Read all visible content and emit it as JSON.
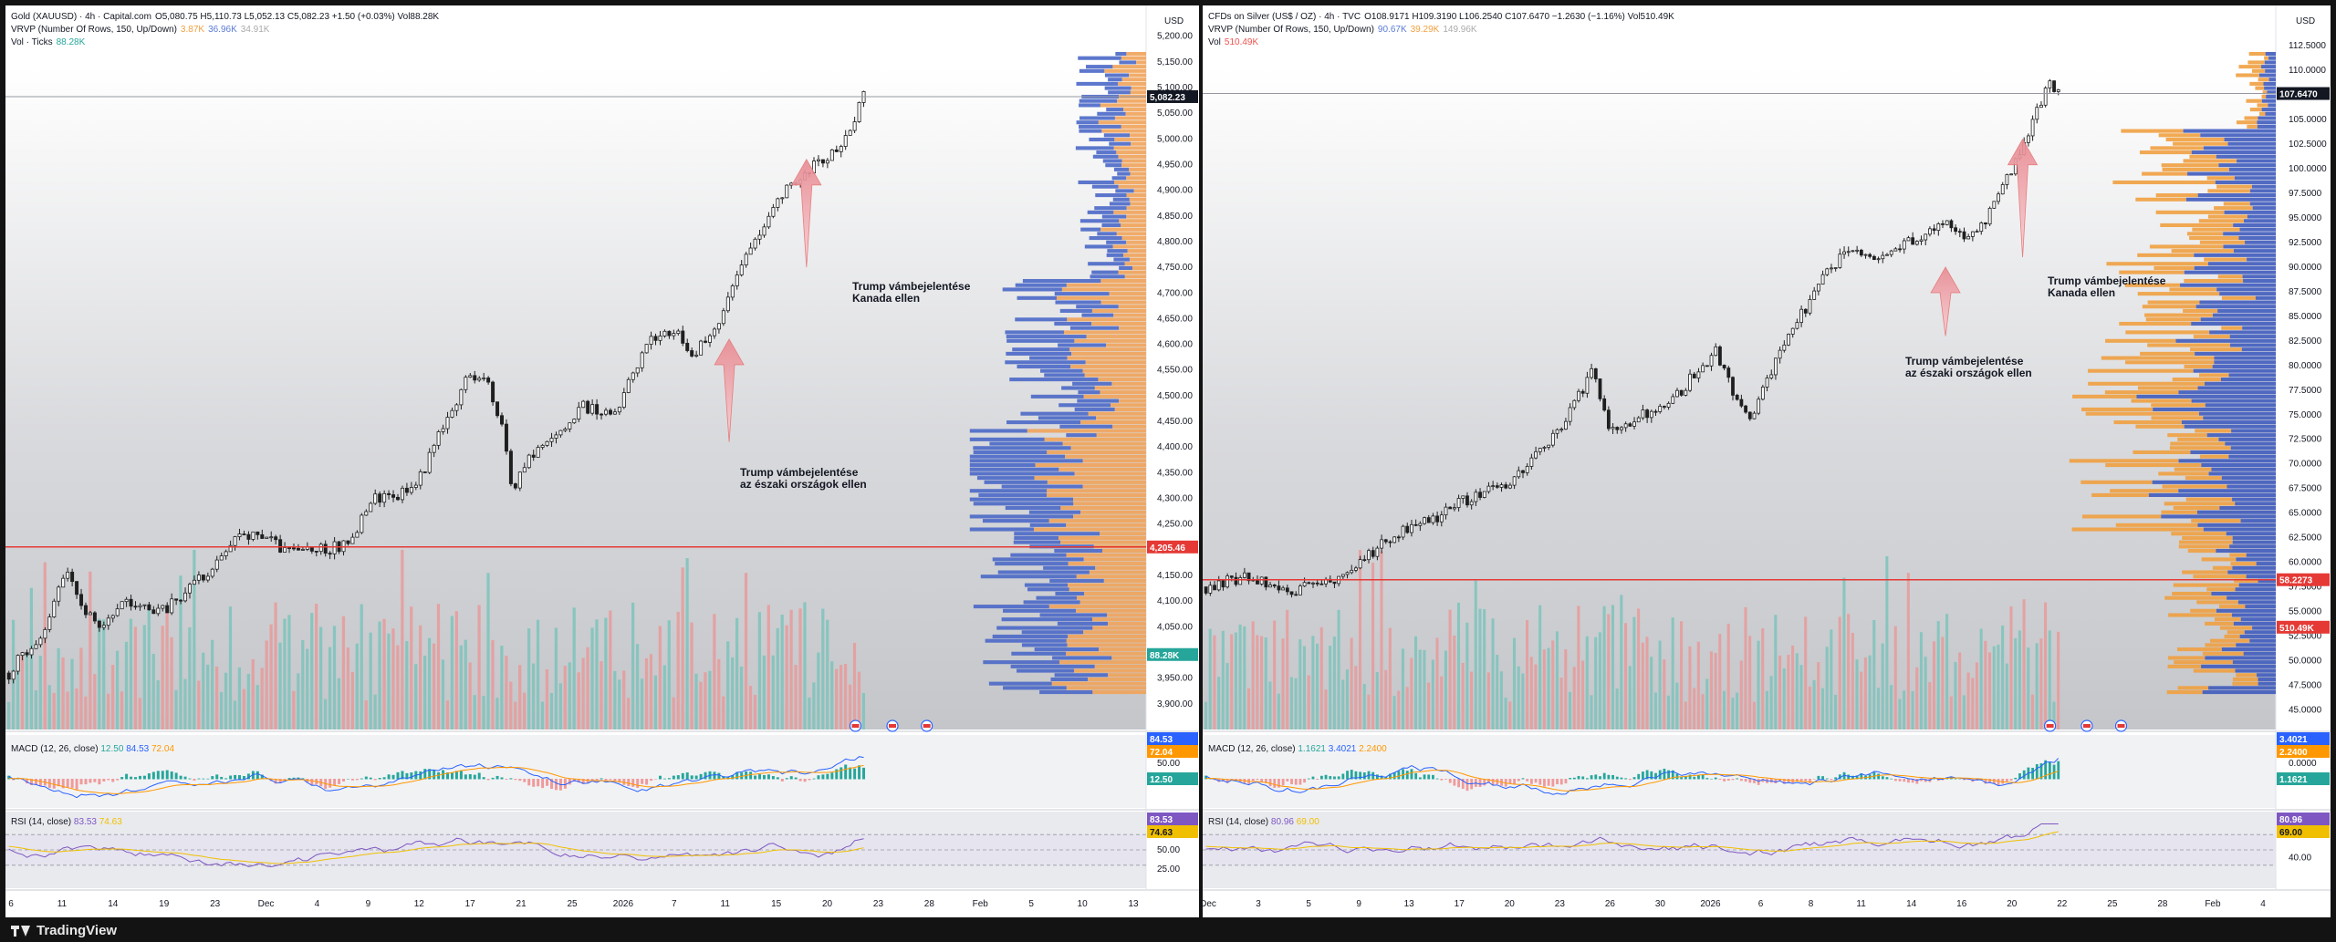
{
  "footer": {
    "brand": "TradingView"
  },
  "charts": [
    {
      "id": "gold",
      "legend": {
        "symbol": "Gold (XAUUSD) · 4h · Capital.com",
        "ohlc": "O5,080.75  H5,110.73  L5,052.13  C5,082.23  +1.50 (+0.03%)  Vol88.28K",
        "vrvp": "VRVP (Number Of Rows, 150, Up/Down)",
        "vrvp_vals": [
          "3.87K",
          "36.96K",
          "34.91K"
        ],
        "vol": "Vol · Ticks",
        "vol_val": "88.28K"
      },
      "currency": "USD",
      "annotations": [
        {
          "line1": "Trump vámbejelentése",
          "line2": "Kanada ellen"
        },
        {
          "line1": "Trump vámbejelentése",
          "line2": "az északi országok ellen"
        }
      ],
      "macd": {
        "label": "MACD (12, 26, close)",
        "vals": [
          "12.50",
          "84.53",
          "72.04"
        ],
        "badges": [
          "84.53",
          "72.04",
          "12.50"
        ],
        "tick": "50.00"
      },
      "rsi": {
        "label": "RSI (14, close)",
        "vals": [
          "83.53",
          "74.63"
        ],
        "badges": [
          "83.53",
          "74.63"
        ],
        "ticks": [
          "50.00",
          "25.00"
        ]
      },
      "badges": {
        "last": "5,082.23",
        "level": "4,205.46",
        "vol": "88.28K"
      },
      "chart_data": {
        "type": "candlestick",
        "y_ticks": [
          "5,200.00",
          "5,150.00",
          "5,100.00",
          "5,050.00",
          "5,000.00",
          "4,950.00",
          "4,900.00",
          "4,850.00",
          "4,800.00",
          "4,750.00",
          "4,700.00",
          "4,650.00",
          "4,600.00",
          "4,550.00",
          "4,500.00",
          "4,450.00",
          "4,400.00",
          "4,350.00",
          "4,300.00",
          "4,250.00",
          "4,200.00",
          "4,150.00",
          "4,100.00",
          "4,050.00",
          "4,000.00",
          "3,950.00",
          "3,900.00"
        ],
        "ylim": [
          3850,
          5210
        ],
        "x_ticks": [
          "6",
          "11",
          "14",
          "19",
          "23",
          "Dec",
          "4",
          "9",
          "12",
          "17",
          "21",
          "25",
          "2026",
          "7",
          "11",
          "15",
          "20",
          "23",
          "28",
          "Feb",
          "5",
          "10",
          "13"
        ],
        "price_path": [
          [
            0,
            3960
          ],
          [
            0.04,
            4050
          ],
          [
            0.06,
            4160
          ],
          [
            0.08,
            4090
          ],
          [
            0.1,
            4040
          ],
          [
            0.13,
            4100
          ],
          [
            0.16,
            4070
          ],
          [
            0.19,
            4110
          ],
          [
            0.22,
            4160
          ],
          [
            0.25,
            4230
          ],
          [
            0.28,
            4220
          ],
          [
            0.31,
            4190
          ],
          [
            0.34,
            4200
          ],
          [
            0.37,
            4210
          ],
          [
            0.4,
            4300
          ],
          [
            0.43,
            4310
          ],
          [
            0.45,
            4340
          ],
          [
            0.47,
            4420
          ],
          [
            0.5,
            4530
          ],
          [
            0.52,
            4540
          ],
          [
            0.54,
            4440
          ],
          [
            0.55,
            4320
          ],
          [
            0.57,
            4380
          ],
          [
            0.6,
            4430
          ],
          [
            0.63,
            4480
          ],
          [
            0.66,
            4460
          ],
          [
            0.7,
            4610
          ],
          [
            0.73,
            4630
          ],
          [
            0.75,
            4580
          ],
          [
            0.78,
            4650
          ],
          [
            0.8,
            4760
          ],
          [
            0.83,
            4850
          ],
          [
            0.86,
            4920
          ],
          [
            0.89,
            4960
          ],
          [
            0.91,
            4980
          ],
          [
            0.935,
            5082
          ]
        ],
        "annotation_points": [
          {
            "x": 0.93,
            "y_from": 4750,
            "y_to": 4960
          },
          {
            "x": 0.84,
            "y_from": 4410,
            "y_to": 4610
          }
        ],
        "levels": {
          "last": 5082.23,
          "support": 4205.46
        },
        "volume_profile": "dense around 4,200 – 4,450, thinner above 4,700"
      }
    },
    {
      "id": "silver",
      "legend": {
        "symbol": "CFDs on Silver (US$ / OZ) · 4h · TVC",
        "ohlc": "O108.9171  H109.3190  L106.2540  C107.6470  −1.2630 (−1.16%)  Vol510.49K",
        "vrvp": "VRVP (Number Of Rows, 150, Up/Down)",
        "vrvp_vals": [
          "90.67K",
          "39.29K",
          "149.96K"
        ],
        "vol": "Vol",
        "vol_val": "510.49K"
      },
      "currency": "USD",
      "annotations": [
        {
          "line1": "Trump vámbejelentése",
          "line2": "Kanada ellen"
        },
        {
          "line1": "Trump vámbejelentése",
          "line2": "az északi országok ellen"
        }
      ],
      "macd": {
        "label": "MACD (12, 26, close)",
        "vals": [
          "1.1621",
          "3.4021",
          "2.2400"
        ],
        "badges": [
          "3.4021",
          "2.2400",
          "1.1621"
        ],
        "tick": "0.0000"
      },
      "rsi": {
        "label": "RSI (14, close)",
        "vals": [
          "80.96",
          "69.00"
        ],
        "badges": [
          "80.96",
          "69.00"
        ],
        "ticks": [
          "40.00"
        ]
      },
      "badges": {
        "last": "107.6470",
        "level": "58.2273",
        "vol": "510.49K"
      },
      "chart_data": {
        "type": "candlestick",
        "y_ticks": [
          "112.5000",
          "110.0000",
          "107.5000",
          "105.0000",
          "102.5000",
          "100.0000",
          "97.5000",
          "95.0000",
          "92.5000",
          "90.0000",
          "87.5000",
          "85.0000",
          "82.5000",
          "80.0000",
          "77.5000",
          "75.0000",
          "72.5000",
          "70.0000",
          "67.5000",
          "65.0000",
          "62.5000",
          "60.0000",
          "57.5000",
          "55.0000",
          "52.5000",
          "50.0000",
          "47.5000",
          "45.0000"
        ],
        "ylim": [
          43,
          114
        ],
        "x_ticks": [
          "Dec",
          "3",
          "5",
          "9",
          "13",
          "17",
          "20",
          "23",
          "26",
          "30",
          "2026",
          "6",
          "8",
          "11",
          "14",
          "16",
          "20",
          "22",
          "25",
          "28",
          "Feb",
          "4"
        ],
        "price_path": [
          [
            0,
            57.5
          ],
          [
            0.05,
            58.5
          ],
          [
            0.1,
            57.2
          ],
          [
            0.15,
            58.0
          ],
          [
            0.18,
            60.5
          ],
          [
            0.22,
            63.0
          ],
          [
            0.26,
            64.5
          ],
          [
            0.3,
            66.5
          ],
          [
            0.34,
            68.0
          ],
          [
            0.38,
            71.0
          ],
          [
            0.42,
            76.0
          ],
          [
            0.44,
            80.0
          ],
          [
            0.46,
            73.0
          ],
          [
            0.5,
            75.0
          ],
          [
            0.54,
            77.5
          ],
          [
            0.58,
            81.5
          ],
          [
            0.6,
            77.0
          ],
          [
            0.62,
            75.0
          ],
          [
            0.64,
            79.0
          ],
          [
            0.67,
            84.0
          ],
          [
            0.7,
            88.5
          ],
          [
            0.73,
            92.0
          ],
          [
            0.76,
            90.5
          ],
          [
            0.8,
            92.5
          ],
          [
            0.84,
            94.5
          ],
          [
            0.87,
            93.0
          ],
          [
            0.9,
            96.5
          ],
          [
            0.93,
            102.5
          ],
          [
            0.96,
            108.5
          ],
          [
            0.97,
            107.6
          ]
        ],
        "annotation_points": [
          {
            "x": 0.955,
            "y_from": 91,
            "y_to": 103
          },
          {
            "x": 0.865,
            "y_from": 83,
            "y_to": 90
          }
        ],
        "levels": {
          "last": 107.647,
          "support": 58.2273
        },
        "volume_profile": "dense 57 – 80, thin above 95"
      }
    }
  ]
}
